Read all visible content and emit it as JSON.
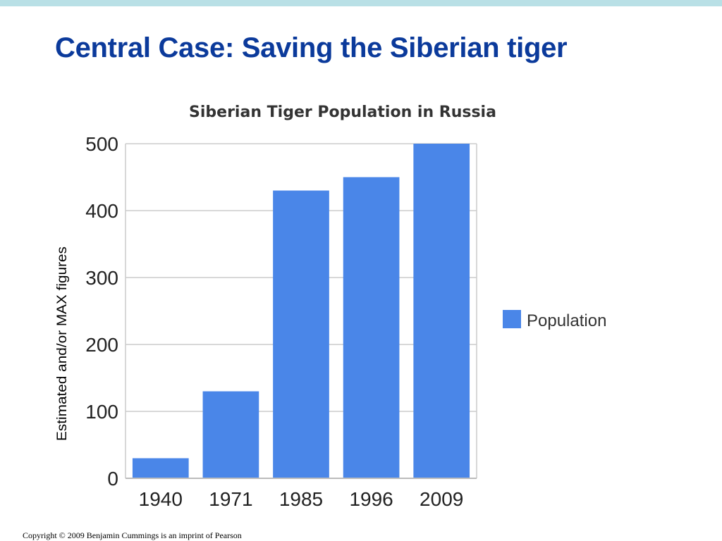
{
  "slide": {
    "title": "Central Case: Saving the Siberian tiger",
    "copyright": "Copyright © 2009 Benjamin Cummings is an imprint of Pearson",
    "accent_color": "#b9e0e6",
    "title_color": "#0b3a9b"
  },
  "chart_data": {
    "type": "bar",
    "title": "Siberian Tiger Population in Russia",
    "xlabel": "",
    "ylabel": "Estimated and/or MAX figures",
    "categories": [
      "1940",
      "1971",
      "1985",
      "1996",
      "2009"
    ],
    "series": [
      {
        "name": "Population",
        "values": [
          30,
          130,
          430,
          450,
          500
        ],
        "color": "#4a86e8"
      }
    ],
    "ylim": [
      0,
      500
    ],
    "yticks": [
      0,
      100,
      200,
      300,
      400,
      500
    ],
    "grid": true,
    "legend": "right"
  }
}
